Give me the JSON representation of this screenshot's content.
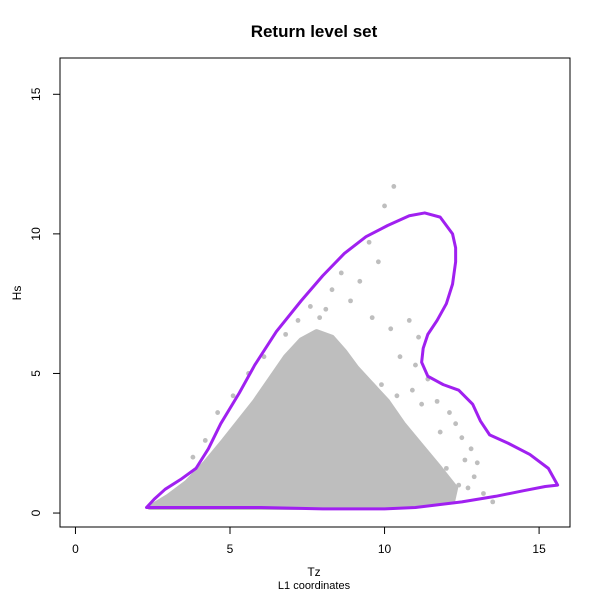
{
  "chart_data": {
    "type": "scatter",
    "title": "Return level set",
    "xlabel": "Tz",
    "subtitle": "L1 coordinates",
    "ylabel": "Hs",
    "xlim": [
      -0.5,
      16
    ],
    "ylim": [
      -0.5,
      16.3
    ],
    "x_ticks": [
      0,
      5,
      10,
      15
    ],
    "y_ticks": [
      0,
      5,
      10,
      15
    ],
    "grid": false,
    "colors": {
      "points": "#bebebe",
      "contour": "#a020f0"
    },
    "scatter_cloud_outline": [
      [
        2.4,
        0.2
      ],
      [
        3.0,
        0.6
      ],
      [
        3.6,
        1.1
      ],
      [
        4.2,
        1.8
      ],
      [
        4.8,
        2.6
      ],
      [
        5.3,
        3.3
      ],
      [
        5.8,
        4.0
      ],
      [
        6.3,
        4.8
      ],
      [
        6.8,
        5.6
      ],
      [
        7.3,
        6.2
      ],
      [
        7.8,
        6.5
      ],
      [
        8.3,
        6.3
      ],
      [
        8.7,
        5.8
      ],
      [
        9.1,
        5.2
      ],
      [
        9.6,
        4.6
      ],
      [
        10.1,
        4.0
      ],
      [
        10.6,
        3.2
      ],
      [
        11.2,
        2.4
      ],
      [
        11.8,
        1.6
      ],
      [
        12.3,
        0.9
      ],
      [
        12.2,
        0.4
      ],
      [
        11.0,
        0.3
      ],
      [
        9.5,
        0.25
      ],
      [
        7.0,
        0.2
      ],
      [
        4.5,
        0.2
      ],
      [
        3.0,
        0.2
      ]
    ],
    "scatter_points": [
      [
        10.3,
        11.7
      ],
      [
        10.0,
        11.0
      ],
      [
        9.5,
        9.7
      ],
      [
        9.8,
        9.0
      ],
      [
        8.6,
        8.6
      ],
      [
        8.3,
        8.0
      ],
      [
        9.2,
        8.3
      ],
      [
        7.6,
        7.4
      ],
      [
        8.9,
        7.6
      ],
      [
        9.6,
        7.0
      ],
      [
        10.8,
        6.9
      ],
      [
        10.2,
        6.6
      ],
      [
        11.1,
        6.3
      ],
      [
        7.2,
        6.9
      ],
      [
        6.8,
        6.4
      ],
      [
        10.5,
        5.6
      ],
      [
        11.0,
        5.3
      ],
      [
        11.4,
        4.8
      ],
      [
        10.9,
        4.4
      ],
      [
        11.7,
        4.0
      ],
      [
        12.1,
        3.6
      ],
      [
        12.3,
        3.2
      ],
      [
        11.8,
        2.9
      ],
      [
        12.5,
        2.7
      ],
      [
        12.8,
        2.3
      ],
      [
        12.6,
        1.9
      ],
      [
        12.0,
        1.6
      ],
      [
        13.0,
        1.8
      ],
      [
        12.9,
        1.3
      ],
      [
        12.4,
        1.0
      ],
      [
        13.2,
        0.7
      ],
      [
        13.5,
        0.4
      ],
      [
        12.2,
        0.6
      ],
      [
        11.5,
        1.2
      ],
      [
        12.7,
        0.9
      ],
      [
        9.9,
        4.6
      ],
      [
        10.4,
        4.2
      ],
      [
        11.2,
        3.9
      ],
      [
        5.1,
        4.2
      ],
      [
        4.6,
        3.6
      ],
      [
        4.2,
        2.6
      ],
      [
        3.8,
        2.0
      ],
      [
        6.1,
        5.6
      ],
      [
        5.6,
        5.0
      ],
      [
        7.9,
        7.0
      ],
      [
        8.1,
        7.3
      ]
    ],
    "contour": [
      [
        2.3,
        0.2
      ],
      [
        2.55,
        0.5
      ],
      [
        2.9,
        0.85
      ],
      [
        3.4,
        1.2
      ],
      [
        3.9,
        1.6
      ],
      [
        4.3,
        2.3
      ],
      [
        4.7,
        3.2
      ],
      [
        5.3,
        4.3
      ],
      [
        5.8,
        5.3
      ],
      [
        6.5,
        6.5
      ],
      [
        7.3,
        7.6
      ],
      [
        8.0,
        8.5
      ],
      [
        8.7,
        9.3
      ],
      [
        9.4,
        9.9
      ],
      [
        10.1,
        10.3
      ],
      [
        10.8,
        10.65
      ],
      [
        11.3,
        10.75
      ],
      [
        11.8,
        10.6
      ],
      [
        12.2,
        10.0
      ],
      [
        12.3,
        9.5
      ],
      [
        12.3,
        9.0
      ],
      [
        12.2,
        8.2
      ],
      [
        12.0,
        7.5
      ],
      [
        11.7,
        6.9
      ],
      [
        11.4,
        6.4
      ],
      [
        11.25,
        5.9
      ],
      [
        11.2,
        5.4
      ],
      [
        11.4,
        4.9
      ],
      [
        11.9,
        4.6
      ],
      [
        12.4,
        4.4
      ],
      [
        12.85,
        3.9
      ],
      [
        13.1,
        3.3
      ],
      [
        13.4,
        2.8
      ],
      [
        14.0,
        2.5
      ],
      [
        14.7,
        2.1
      ],
      [
        15.3,
        1.6
      ],
      [
        15.6,
        1.0
      ],
      [
        15.2,
        0.95
      ],
      [
        14.5,
        0.8
      ],
      [
        13.6,
        0.6
      ],
      [
        12.5,
        0.4
      ],
      [
        11.0,
        0.2
      ],
      [
        10.0,
        0.15
      ],
      [
        8.0,
        0.15
      ],
      [
        6.0,
        0.2
      ],
      [
        4.0,
        0.2
      ],
      [
        2.8,
        0.2
      ],
      [
        2.3,
        0.2
      ]
    ]
  }
}
